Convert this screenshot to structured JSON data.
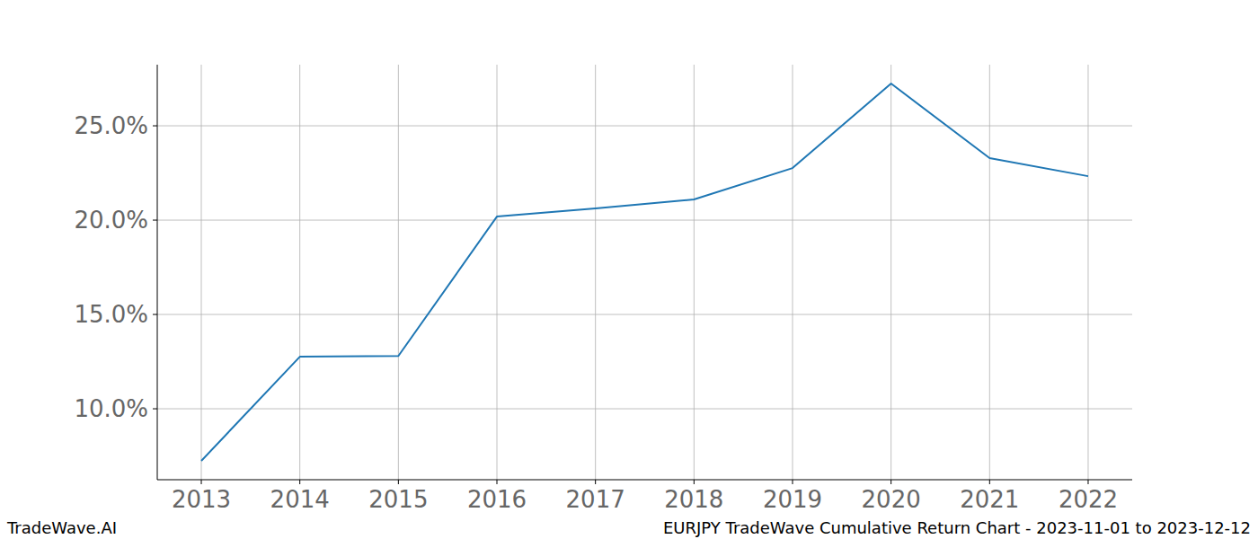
{
  "chart_data": {
    "type": "line",
    "title": "EURJPY TradeWave Cumulative Return Chart - 2023-11-01 to 2023-12-12",
    "source": "TradeWave.AI",
    "x": [
      2013,
      2014,
      2015,
      2016,
      2017,
      2018,
      2019,
      2020,
      2021,
      2022
    ],
    "series": [
      {
        "name": "EURJPY",
        "color": "#1f77b4",
        "values": [
          7.24,
          12.76,
          12.8,
          20.19,
          20.62,
          21.1,
          22.76,
          27.24,
          23.29,
          22.33
        ]
      }
    ],
    "xlim": [
      2012.553,
      2022.447
    ],
    "ylim": [
      6.24,
      28.24
    ],
    "xticks": [
      2013,
      2014,
      2015,
      2016,
      2017,
      2018,
      2019,
      2020,
      2021,
      2022
    ],
    "yticks": [
      {
        "value": 10,
        "label": "10.0%"
      },
      {
        "value": 15,
        "label": "15.0%"
      },
      {
        "value": 20,
        "label": "20.0%"
      },
      {
        "value": 25,
        "label": "25.0%"
      }
    ],
    "grid": true
  }
}
